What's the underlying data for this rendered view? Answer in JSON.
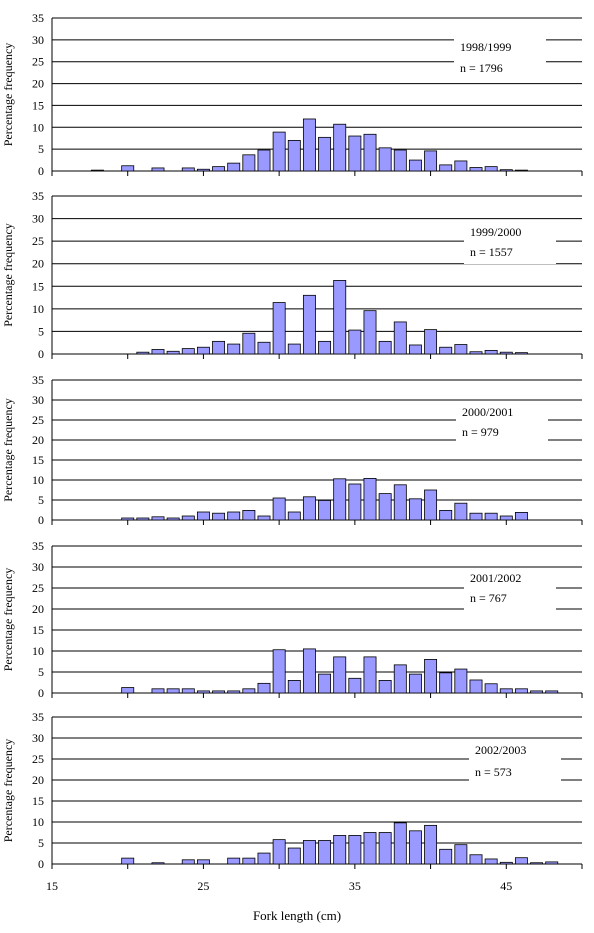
{
  "figure": {
    "xlabel": "Fork length (cm)"
  },
  "chart_data": [
    {
      "type": "bar",
      "ylabel": "Percentage frequency",
      "yticks": [
        "0",
        "5",
        "10",
        "15",
        "20",
        "25",
        "30",
        "35"
      ],
      "ylim": [
        0,
        35
      ],
      "xlim": [
        15,
        50
      ],
      "legend": [
        "1998/1999",
        "n = 1796"
      ],
      "x": [
        18,
        20,
        22,
        24,
        25,
        26,
        27,
        28,
        29,
        30,
        31,
        32,
        33,
        34,
        35,
        36,
        37,
        38,
        39,
        40,
        41,
        42,
        43,
        44,
        45,
        46
      ],
      "values": [
        0.2,
        1.2,
        0.7,
        0.7,
        0.4,
        1.0,
        1.8,
        3.7,
        4.8,
        8.9,
        7.0,
        11.9,
        7.7,
        10.7,
        8.0,
        8.4,
        5.3,
        4.8,
        2.5,
        4.6,
        1.4,
        2.3,
        0.8,
        1.0,
        0.3,
        0.2
      ]
    },
    {
      "type": "bar",
      "ylabel": "Percentage frequency",
      "yticks": [
        "0",
        "5",
        "10",
        "15",
        "20",
        "25",
        "30",
        "35"
      ],
      "ylim": [
        0,
        35
      ],
      "xlim": [
        15,
        50
      ],
      "legend": [
        "1999/2000",
        "n = 1557"
      ],
      "x": [
        21,
        22,
        23,
        24,
        25,
        26,
        27,
        28,
        29,
        30,
        31,
        32,
        33,
        34,
        35,
        36,
        37,
        38,
        39,
        40,
        41,
        42,
        43,
        44,
        45,
        46
      ],
      "values": [
        0.4,
        1.0,
        0.6,
        1.2,
        1.5,
        2.8,
        2.2,
        4.6,
        2.6,
        11.4,
        2.2,
        13.0,
        2.8,
        16.3,
        5.3,
        9.6,
        2.8,
        7.1,
        2.0,
        5.4,
        1.5,
        2.1,
        0.5,
        0.8,
        0.4,
        0.3
      ]
    },
    {
      "type": "bar",
      "ylabel": "Percentage frequency",
      "yticks": [
        "0",
        "5",
        "10",
        "15",
        "20",
        "25",
        "30",
        "35"
      ],
      "ylim": [
        0,
        35
      ],
      "xlim": [
        15,
        50
      ],
      "legend": [
        "2000/2001",
        "n = 979"
      ],
      "x": [
        20,
        21,
        22,
        23,
        24,
        25,
        26,
        27,
        28,
        29,
        30,
        31,
        32,
        33,
        34,
        35,
        36,
        37,
        38,
        39,
        40,
        41,
        42,
        43,
        44,
        45,
        46
      ],
      "values": [
        0.5,
        0.5,
        0.8,
        0.5,
        1.0,
        2.0,
        1.7,
        2.0,
        2.4,
        1.0,
        5.5,
        2.0,
        5.8,
        4.9,
        10.3,
        9.0,
        10.4,
        6.6,
        8.8,
        5.3,
        7.5,
        2.4,
        4.2,
        1.7,
        1.7,
        1.0,
        1.9
      ]
    },
    {
      "type": "bar",
      "ylabel": "Percentage frequency",
      "yticks": [
        "0",
        "5",
        "10",
        "15",
        "20",
        "25",
        "30",
        "35"
      ],
      "ylim": [
        0,
        35
      ],
      "xlim": [
        15,
        50
      ],
      "legend": [
        "2001/2002",
        "n = 767"
      ],
      "x": [
        20,
        22,
        23,
        24,
        25,
        26,
        27,
        28,
        29,
        30,
        31,
        32,
        33,
        34,
        35,
        36,
        37,
        38,
        39,
        40,
        41,
        42,
        43,
        44,
        45,
        46,
        47,
        48
      ],
      "values": [
        1.3,
        1.0,
        1.0,
        1.0,
        0.5,
        0.5,
        0.5,
        1.0,
        2.3,
        10.3,
        3.0,
        10.5,
        4.5,
        8.6,
        3.5,
        8.6,
        3.0,
        6.7,
        4.5,
        8.0,
        4.8,
        5.7,
        3.1,
        2.2,
        1.0,
        1.0,
        0.5,
        0.5
      ]
    },
    {
      "type": "bar",
      "ylabel": "Percentage frequency",
      "yticks": [
        "0",
        "5",
        "10",
        "15",
        "20",
        "25",
        "30",
        "35"
      ],
      "ylim": [
        0,
        35
      ],
      "xlim": [
        15,
        50
      ],
      "xticks": [
        "15",
        "25",
        "35",
        "45"
      ],
      "legend": [
        "2002/2003",
        "n = 573"
      ],
      "x": [
        20,
        22,
        24,
        25,
        27,
        28,
        29,
        30,
        31,
        32,
        33,
        34,
        35,
        36,
        37,
        38,
        39,
        40,
        41,
        42,
        43,
        44,
        45,
        46,
        47,
        48
      ],
      "values": [
        1.4,
        0.3,
        1.0,
        1.0,
        1.4,
        1.4,
        2.6,
        5.8,
        3.8,
        5.6,
        5.6,
        6.8,
        6.8,
        7.5,
        7.5,
        9.8,
        7.9,
        9.2,
        3.5,
        4.6,
        2.2,
        1.2,
        0.4,
        1.5,
        0.3,
        0.5
      ]
    }
  ],
  "style": {
    "bar_fill": "#9999ff",
    "bar_stroke": "#000000",
    "grid_color": "#000000"
  }
}
